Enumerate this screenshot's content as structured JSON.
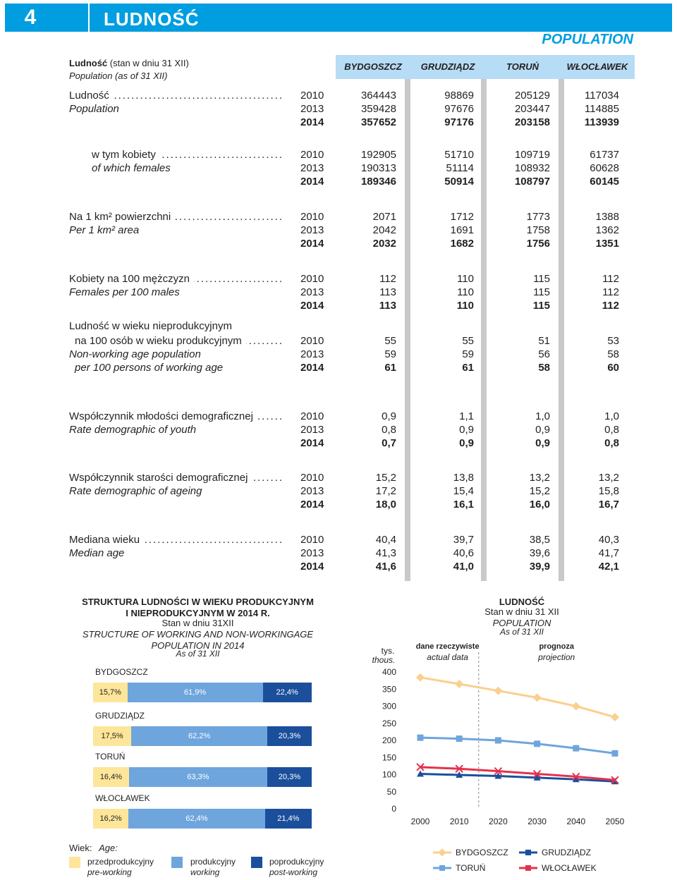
{
  "header": {
    "number": "4",
    "title": "LUDNOŚĆ",
    "title_en": "POPULATION"
  },
  "table": {
    "caption_pl_bold": "Ludność",
    "caption_pl_rest": " (stan w dniu 31 XII)",
    "caption_en": "Population (as of 31 XII)",
    "columns": [
      "BYDGOSZCZ",
      "GRUDZIĄDZ",
      "TORUŃ",
      "WŁOCŁAWEK"
    ],
    "indicators": [
      {
        "pl": "Ludność",
        "en": "Population",
        "rows": [
          {
            "year": "2010",
            "values": [
              "364443",
              "98869",
              "205129",
              "117034"
            ]
          },
          {
            "year": "2013",
            "values": [
              "359428",
              "97676",
              "203447",
              "114885"
            ]
          },
          {
            "year": "2014",
            "values": [
              "357652",
              "97176",
              "203158",
              "113939"
            ]
          }
        ]
      },
      {
        "pl": "w tym kobiety",
        "en": "of which females",
        "rows": [
          {
            "year": "2010",
            "values": [
              "192905",
              "51710",
              "109719",
              "61737"
            ]
          },
          {
            "year": "2013",
            "values": [
              "190313",
              "51114",
              "108932",
              "60628"
            ]
          },
          {
            "year": "2014",
            "values": [
              "189346",
              "50914",
              "108797",
              "60145"
            ]
          }
        ]
      },
      {
        "pl": "Na 1 km² powierzchni",
        "en": "Per 1 km² area",
        "rows": [
          {
            "year": "2010",
            "values": [
              "2071",
              "1712",
              "1773",
              "1388"
            ]
          },
          {
            "year": "2013",
            "values": [
              "2042",
              "1691",
              "1758",
              "1362"
            ]
          },
          {
            "year": "2014",
            "values": [
              "2032",
              "1682",
              "1756",
              "1351"
            ]
          }
        ]
      },
      {
        "pl": "Kobiety na 100 mężczyzn",
        "en": "Females per 100 males",
        "rows": [
          {
            "year": "2010",
            "values": [
              "112",
              "110",
              "115",
              "112"
            ]
          },
          {
            "year": "2013",
            "values": [
              "113",
              "110",
              "115",
              "112"
            ]
          },
          {
            "year": "2014",
            "values": [
              "113",
              "110",
              "115",
              "112"
            ]
          }
        ]
      },
      {
        "pl": "Ludność w wieku nieprodukcyjnym",
        "pl2": "na 100 osób w wieku produkcyjnym",
        "en": "Non-working age population",
        "en2": "per 100 persons of working age",
        "rows": [
          {
            "year": "2010",
            "values": [
              "55",
              "55",
              "51",
              "53"
            ]
          },
          {
            "year": "2013",
            "values": [
              "59",
              "59",
              "56",
              "58"
            ]
          },
          {
            "year": "2014",
            "values": [
              "61",
              "61",
              "58",
              "60"
            ]
          }
        ]
      },
      {
        "pl": "Współczynnik młodości demograficznej",
        "en": "Rate demographic of youth",
        "rows": [
          {
            "year": "2010",
            "values": [
              "0,9",
              "1,1",
              "1,0",
              "1,0"
            ]
          },
          {
            "year": "2013",
            "values": [
              "0,8",
              "0,9",
              "0,9",
              "0,8"
            ]
          },
          {
            "year": "2014",
            "values": [
              "0,7",
              "0,9",
              "0,9",
              "0,8"
            ]
          }
        ]
      },
      {
        "pl": "Współczynnik starości demograficznej",
        "en": "Rate demographic of ageing",
        "rows": [
          {
            "year": "2010",
            "values": [
              "15,2",
              "13,8",
              "13,2",
              "13,2"
            ]
          },
          {
            "year": "2013",
            "values": [
              "17,2",
              "15,4",
              "15,2",
              "15,8"
            ]
          },
          {
            "year": "2014",
            "values": [
              "18,0",
              "16,1",
              "16,0",
              "16,7"
            ]
          }
        ]
      },
      {
        "pl": "Mediana wieku",
        "en": "Median age",
        "rows": [
          {
            "year": "2010",
            "values": [
              "40,4",
              "39,7",
              "38,5",
              "40,3"
            ]
          },
          {
            "year": "2013",
            "values": [
              "41,3",
              "40,6",
              "39,6",
              "41,7"
            ]
          },
          {
            "year": "2014",
            "values": [
              "41,6",
              "41,0",
              "39,9",
              "42,1"
            ]
          }
        ]
      }
    ]
  },
  "structure_chart": {
    "title_pl_1": "STRUKTURA LUDNOŚCI W WIEKU PRODUKCYJNYM",
    "title_pl_2": "I NIEPRODUKCYJNYM W 2014 R.",
    "sub_pl": "Stan w dniu 31XII",
    "title_en_1": "STRUCTURE OF WORKING AND NON-WORKINGAGE",
    "title_en_2": "POPULATION IN 2014",
    "sub_en": "As of 31 XII",
    "bars": [
      {
        "city": "BYDGOSZCZ",
        "pre": 15.7,
        "working": 61.9,
        "post": 22.4,
        "labels": [
          "15,7%",
          "61,9%",
          "22,4%"
        ]
      },
      {
        "city": "GRUDZIĄDZ",
        "pre": 17.5,
        "working": 62.2,
        "post": 20.3,
        "labels": [
          "17,5%",
          "62,2%",
          "20,3%"
        ]
      },
      {
        "city": "TORUŃ",
        "pre": 16.4,
        "working": 63.3,
        "post": 20.3,
        "labels": [
          "16,4%",
          "63,3%",
          "20,3%"
        ]
      },
      {
        "city": "WŁOCŁAWEK",
        "pre": 16.2,
        "working": 62.4,
        "post": 21.4,
        "labels": [
          "16,2%",
          "62,4%",
          "21,4%"
        ]
      }
    ],
    "legend": {
      "title_pl": "Wiek:",
      "title_en": "Age:",
      "items": [
        {
          "pl": "przedprodukcyjny",
          "en": "pre-working",
          "color": "#fde699"
        },
        {
          "pl": "produkcyjny",
          "en": "working",
          "color": "#6ea5dc"
        },
        {
          "pl": "poprodukcyjny",
          "en": "post-working",
          "color": "#1b4f9c"
        }
      ]
    }
  },
  "chart_data": {
    "type": "line",
    "title": "LUDNOŚĆ",
    "subtitle_pl": "Stan w dniu 31 XII",
    "title_en": "POPULATION",
    "subtitle_en": "As of 31 XII",
    "ylabel_pl": "tys.",
    "ylabel_en": "thous.",
    "actual_pl": "dane rzeczywiste",
    "actual_en": "actual data",
    "forecast_pl": "prognoza",
    "forecast_en": "projection",
    "x": [
      2000,
      2005,
      2010,
      2015,
      2020,
      2025,
      2030,
      2035,
      2040,
      2045,
      2050
    ],
    "xticks": [
      2000,
      2010,
      2020,
      2030,
      2040,
      2050
    ],
    "yticks": [
      0,
      50,
      100,
      150,
      200,
      250,
      300,
      350,
      400
    ],
    "xlim": [
      2000,
      2050
    ],
    "ylim": [
      0,
      400
    ],
    "divider_x": 2015,
    "series": [
      {
        "name": "BYDGOSZCZ",
        "color": "#f9d08d",
        "marker": "diamond",
        "x": [
          2000,
          2010,
          2020,
          2030,
          2040,
          2050
        ],
        "values": [
          384,
          365,
          345,
          325,
          300,
          268
        ]
      },
      {
        "name": "GRUDZIĄDZ",
        "color": "#1b4f9c",
        "marker": "triangle",
        "x": [
          2000,
          2010,
          2020,
          2030,
          2040,
          2050
        ],
        "values": [
          102,
          99,
          96,
          91,
          86,
          80
        ]
      },
      {
        "name": "TORUŃ",
        "color": "#6ea5dc",
        "marker": "square",
        "x": [
          2000,
          2010,
          2020,
          2030,
          2040,
          2050
        ],
        "values": [
          208,
          205,
          200,
          190,
          177,
          162
        ]
      },
      {
        "name": "WŁOCŁAWEK",
        "color": "#e5324c",
        "marker": "cross",
        "x": [
          2000,
          2010,
          2020,
          2030,
          2040,
          2050
        ],
        "values": [
          122,
          117,
          110,
          102,
          94,
          84
        ]
      }
    ]
  }
}
